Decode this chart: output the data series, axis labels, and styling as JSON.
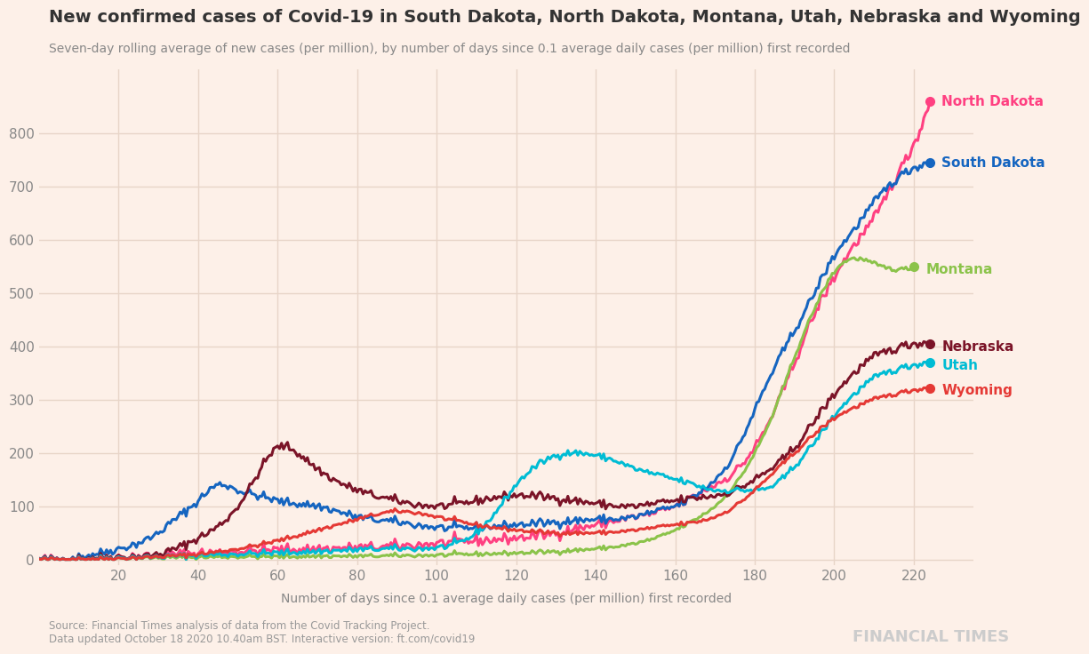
{
  "title": "New confirmed cases of Covid-19 in South Dakota, North Dakota, Montana, Utah, Nebraska and Wyoming",
  "subtitle": "Seven-day rolling average of new cases (per million), by number of days since 0.1 average daily cases (per million) first recorded",
  "xlabel": "Number of days since 0.1 average daily cases (per million) first recorded",
  "ylabel": "",
  "source_text": "Source: Financial Times analysis of data from the Covid Tracking Project.\nData updated October 18 2020 10.40am BST. Interactive version: ft.com/covid19",
  "ft_label": "FINANCIAL TIMES",
  "background_color": "#FDF0E8",
  "grid_color": "#E8D5C8",
  "series": {
    "North Dakota": {
      "color": "#FF4081",
      "dot_color": "#FF4081",
      "label_color": "#FF4081"
    },
    "South Dakota": {
      "color": "#1565C0",
      "dot_color": "#1565C0",
      "label_color": "#1565C0"
    },
    "Montana": {
      "color": "#8BC34A",
      "dot_color": "#8BC34A",
      "label_color": "#8BC34A"
    },
    "Nebraska": {
      "color": "#8B0000",
      "dot_color": "#8B0000",
      "label_color": "#8B0000"
    },
    "Utah": {
      "color": "#00BCD4",
      "dot_color": "#00BCD4",
      "label_color": "#00BCD4"
    },
    "Wyoming": {
      "color": "#E53935",
      "dot_color": "#E53935",
      "label_color": "#E53935"
    }
  },
  "xlim": [
    0,
    235
  ],
  "ylim": [
    -10,
    920
  ],
  "yticks": [
    0,
    100,
    200,
    300,
    400,
    500,
    600,
    700,
    800
  ],
  "xticks": [
    20,
    40,
    60,
    80,
    100,
    120,
    140,
    160,
    180,
    200,
    220
  ]
}
